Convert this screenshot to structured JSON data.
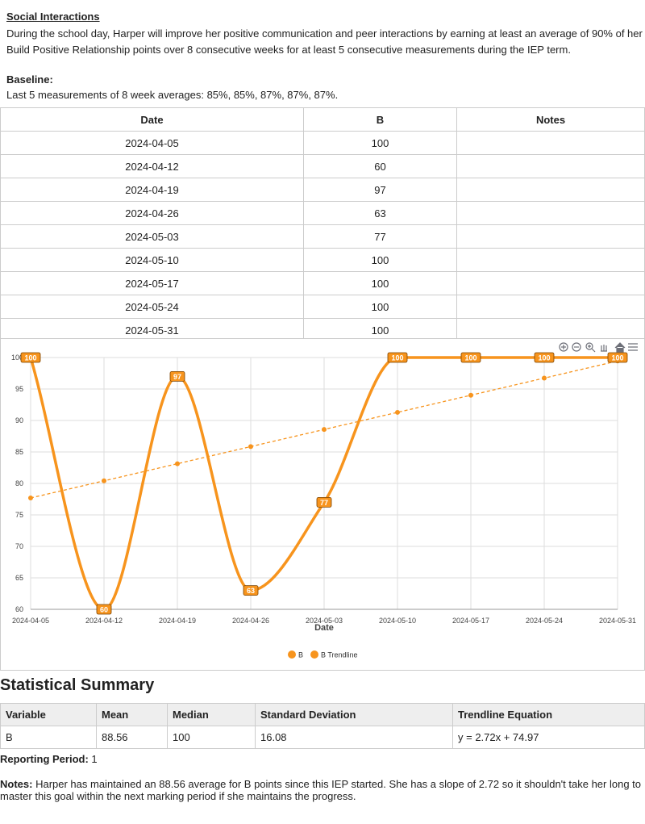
{
  "section_title": "Social Interactions",
  "goal": "During the school day, Harper will improve her positive communication and peer interactions by earning at least an average of 90% of her Build Positive Relationship points over 8 consecutive weeks for at least 5 consecutive measurements during the IEP term.",
  "baseline": {
    "label": "Baseline:",
    "text": "Last 5 measurements of 8 week averages: 85%, 85%, 87%, 87%, 87%."
  },
  "table": {
    "columns": [
      "Date",
      "B",
      "Notes"
    ],
    "rows": [
      [
        "2024-04-05",
        100
      ],
      [
        "2024-04-12",
        60
      ],
      [
        "2024-04-19",
        97
      ],
      [
        "2024-04-26",
        63
      ],
      [
        "2024-05-03",
        77
      ],
      [
        "2024-05-10",
        100
      ],
      [
        "2024-05-17",
        100
      ],
      [
        "2024-05-24",
        100
      ],
      [
        "2024-05-31",
        100
      ]
    ]
  },
  "chart_data": {
    "type": "line",
    "xlabel": "Date",
    "categories": [
      "2024-04-05",
      "2024-04-12",
      "2024-04-19",
      "2024-04-26",
      "2024-05-03",
      "2024-05-10",
      "2024-05-17",
      "2024-05-24",
      "2024-05-31"
    ],
    "series": [
      {
        "name": "B",
        "color": "#f7941d",
        "values": [
          100,
          60,
          97,
          63,
          77,
          100,
          100,
          100,
          100
        ]
      },
      {
        "name": "B Trendline",
        "color": "#f7941d",
        "dashed": true,
        "values": [
          77.69,
          80.41,
          83.13,
          85.85,
          88.57,
          91.29,
          94.01,
          96.73,
          99.45
        ]
      }
    ],
    "ylim": [
      60,
      100
    ],
    "yticks": [
      60,
      65,
      70,
      75,
      80,
      85,
      90,
      95,
      100
    ],
    "grid": true,
    "legend": "bottom"
  },
  "summary": {
    "title": "Statistical Summary",
    "columns": [
      "Variable",
      "Mean",
      "Median",
      "Standard Deviation",
      "Trendline Equation"
    ],
    "row": [
      "B",
      88.56,
      100,
      16.08,
      "y = 2.72x + 74.97"
    ]
  },
  "reporting_period": {
    "label": "Reporting Period:",
    "value": 1
  },
  "notes": {
    "label": "Notes:",
    "text": "Harper has maintained an 88.56 average for B points since this IEP started. She has a slope of 2.72 so it shouldn't take her long to master this goal within the next marking period if she maintains the progress."
  }
}
